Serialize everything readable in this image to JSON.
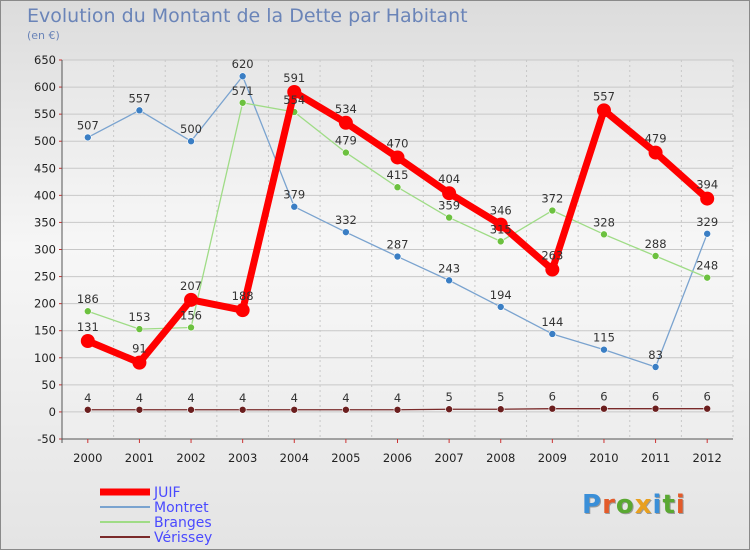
{
  "title": "Evolution du Montant de la Dette par Habitant",
  "subtitle": "(en €)",
  "logo_text": "Proxiti",
  "colors": {
    "title": "#6a84b8",
    "legend_text": "#4a4aff"
  },
  "chart_data": {
    "type": "line",
    "title": "Evolution du Montant de la Dette par Habitant",
    "subtitle": "(en €)",
    "xlabel": "",
    "ylabel": "",
    "x": [
      "2000",
      "2001",
      "2002",
      "2003",
      "2004",
      "2005",
      "2006",
      "2007",
      "2008",
      "2009",
      "2010",
      "2011",
      "2012"
    ],
    "ylim": [
      -50,
      650
    ],
    "yticks": [
      "-50",
      "0",
      "50",
      "100",
      "150",
      "200",
      "250",
      "300",
      "350",
      "400",
      "450",
      "500",
      "550",
      "600",
      "650"
    ],
    "grid": true,
    "legend_position": "bottom-left",
    "series": [
      {
        "name": "JUIF",
        "color": "#ff0000",
        "point_color": "#ff0000",
        "width": 7,
        "marker": 7,
        "values": [
          131,
          91,
          207,
          188,
          591,
          534,
          470,
          404,
          346,
          263,
          557,
          479,
          394
        ],
        "labels": [
          "131",
          "91",
          "207",
          "188",
          "591",
          "534",
          "470",
          "404",
          "346",
          "263",
          "557",
          "479",
          "394"
        ]
      },
      {
        "name": "Montret",
        "color": "#7aa3cf",
        "point_color": "#3a7ec4",
        "width": 1.3,
        "marker": 3.5,
        "values": [
          507,
          557,
          500,
          620,
          379,
          332,
          287,
          243,
          194,
          144,
          115,
          83,
          329
        ],
        "labels": [
          "507",
          "557",
          "500",
          "620",
          "379",
          "332",
          "287",
          "243",
          "194",
          "144",
          "115",
          "83",
          "329"
        ]
      },
      {
        "name": "Branges",
        "color": "#9fdc86",
        "point_color": "#6cc13f",
        "width": 1.3,
        "marker": 3.5,
        "values": [
          186,
          153,
          156,
          571,
          554,
          479,
          415,
          359,
          315,
          372,
          328,
          288,
          248
        ],
        "labels": [
          "186",
          "153",
          "156",
          "571",
          "554",
          "479",
          "415",
          "359",
          "315",
          "372",
          "328",
          "288",
          "248"
        ]
      },
      {
        "name": "Vérissey",
        "color": "#7a2a2a",
        "point_color": "#6b1e1e",
        "width": 1.3,
        "marker": 3.5,
        "values": [
          4,
          4,
          4,
          4,
          4,
          4,
          4,
          5,
          5,
          6,
          6,
          6,
          6
        ],
        "labels": [
          "4",
          "4",
          "4",
          "4",
          "4",
          "4",
          "4",
          "5",
          "5",
          "6",
          "6",
          "6",
          "6"
        ]
      }
    ]
  }
}
